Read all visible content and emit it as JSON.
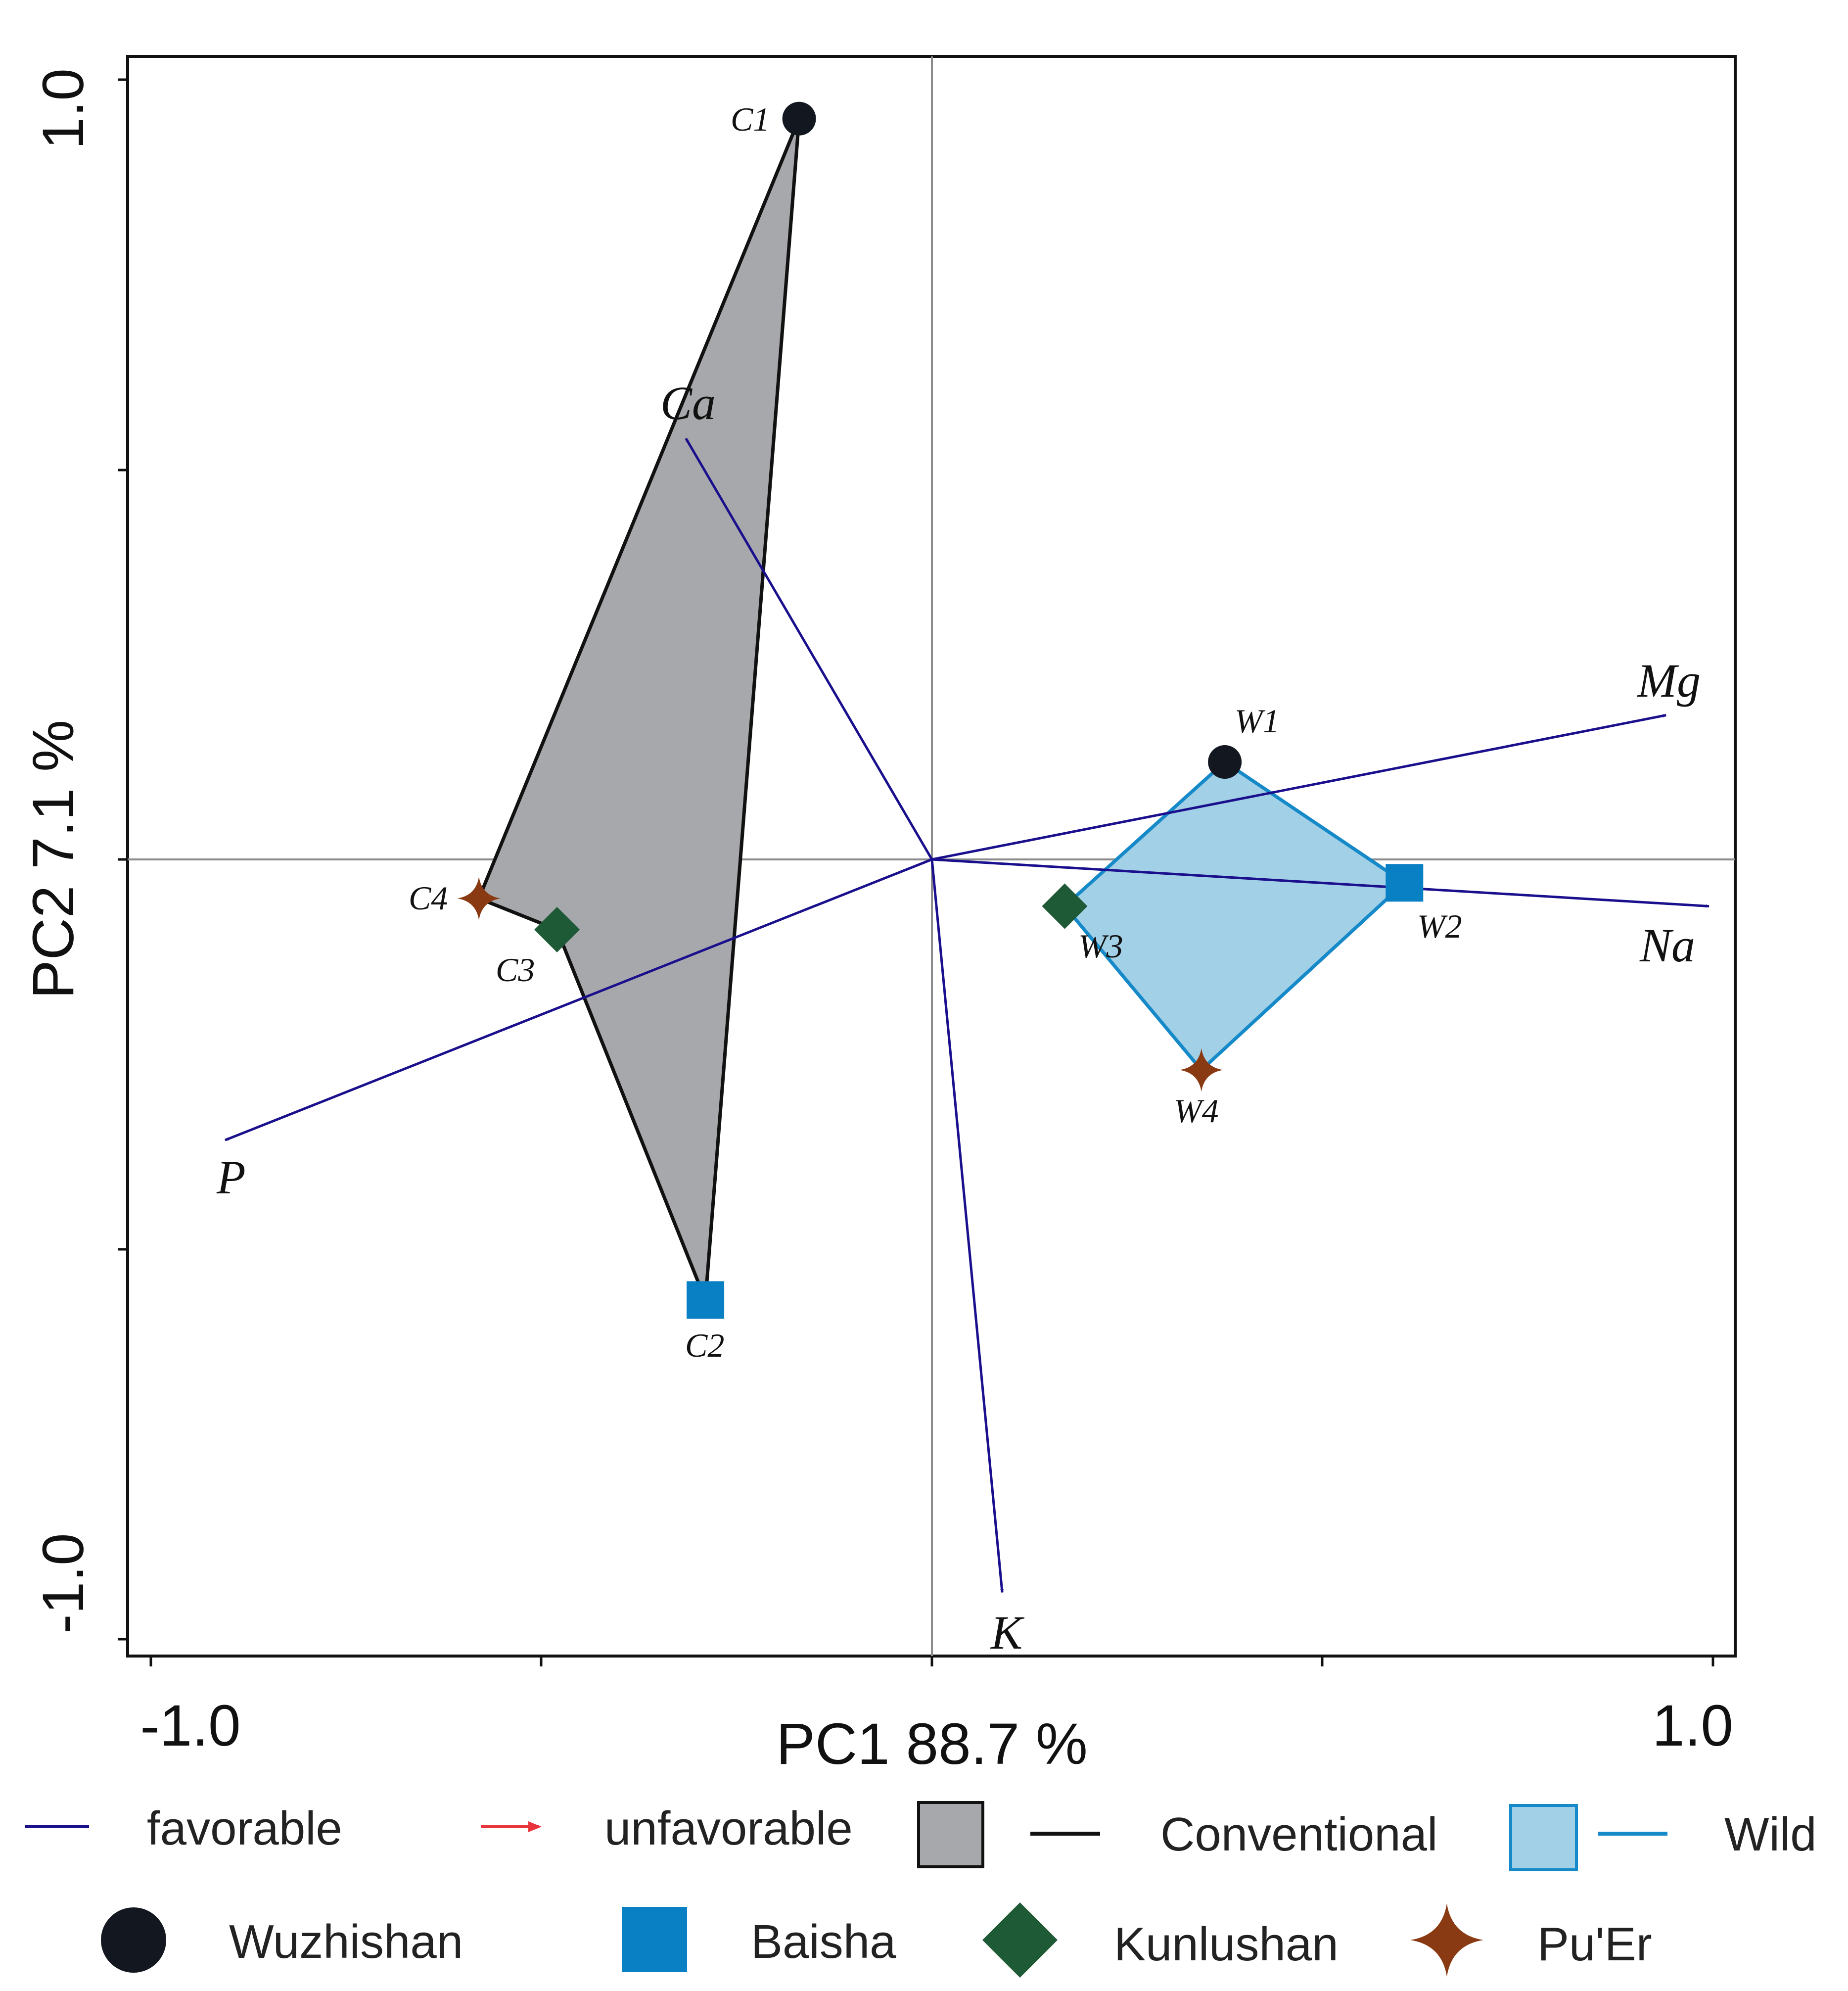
{
  "chart_data": {
    "type": "scatter",
    "subtype": "pca-biplot",
    "xlabel": "PC1 88.7 %",
    "ylabel": "PC2 7.1 %",
    "xlim": [
      -1.0,
      1.0
    ],
    "ylim": [
      -1.0,
      1.0
    ],
    "x_tick_labels": [
      "-1.0",
      "1.0"
    ],
    "y_tick_labels": [
      "1.0",
      "-1.0"
    ],
    "gridlines": "origin-only",
    "samples": [
      {
        "label": "C1",
        "x": -0.17,
        "y": 0.95,
        "site": "Wuzhishan",
        "group": "Conventional"
      },
      {
        "label": "C2",
        "x": -0.29,
        "y": -0.565,
        "site": "Baisha",
        "group": "Conventional"
      },
      {
        "label": "C3",
        "x": -0.48,
        "y": -0.09,
        "site": "Kunlushan",
        "group": "Conventional"
      },
      {
        "label": "C4",
        "x": -0.58,
        "y": -0.05,
        "site": "Pu'Er",
        "group": "Conventional"
      },
      {
        "label": "W1",
        "x": 0.375,
        "y": 0.125,
        "site": "Wuzhishan",
        "group": "Wild"
      },
      {
        "label": "W2",
        "x": 0.605,
        "y": -0.03,
        "site": "Baisha",
        "group": "Wild"
      },
      {
        "label": "W3",
        "x": 0.17,
        "y": -0.06,
        "site": "Kunlushan",
        "group": "Wild"
      },
      {
        "label": "W4",
        "x": 0.345,
        "y": -0.27,
        "site": "Pu'Er",
        "group": "Wild"
      }
    ],
    "vectors": [
      {
        "name": "Ca",
        "x": -0.315,
        "y": 0.54,
        "type": "favorable"
      },
      {
        "name": "Mg",
        "x": 0.94,
        "y": 0.185,
        "type": "favorable"
      },
      {
        "name": "Na",
        "x": 0.995,
        "y": -0.06,
        "type": "favorable"
      },
      {
        "name": "P",
        "x": -0.905,
        "y": -0.36,
        "type": "favorable"
      },
      {
        "name": "K",
        "x": 0.09,
        "y": -0.94,
        "type": "favorable"
      }
    ],
    "groups": [
      {
        "name": "Conventional",
        "hull": [
          "C1",
          "C2",
          "C3",
          "C4"
        ]
      },
      {
        "name": "Wild",
        "hull": [
          "W1",
          "W2",
          "W4",
          "W3"
        ]
      }
    ]
  },
  "legend": {
    "favorable": "favorable",
    "unfavorable": "unfavorable",
    "conventional": "Conventional",
    "wild": "Wild",
    "wuzhishan": "Wuzhishan",
    "baisha": "Baisha",
    "kunlushan": "Kunlushan",
    "puer": "Pu'Er"
  },
  "colors": {
    "favorable": "#1a0f8c",
    "unfavorable": "#e8343c",
    "conventional_fill": "#a7a8ab",
    "conventional_line": "#111111",
    "wild_fill": "#a2d0e6",
    "wild_line": "#1689c9",
    "wuzhishan": "#131820",
    "baisha": "#0a80c4",
    "kunlushan": "#1f5a37",
    "puer": "#8a3a12",
    "axis": "#111111",
    "origin_line": "#8c8c8c"
  }
}
